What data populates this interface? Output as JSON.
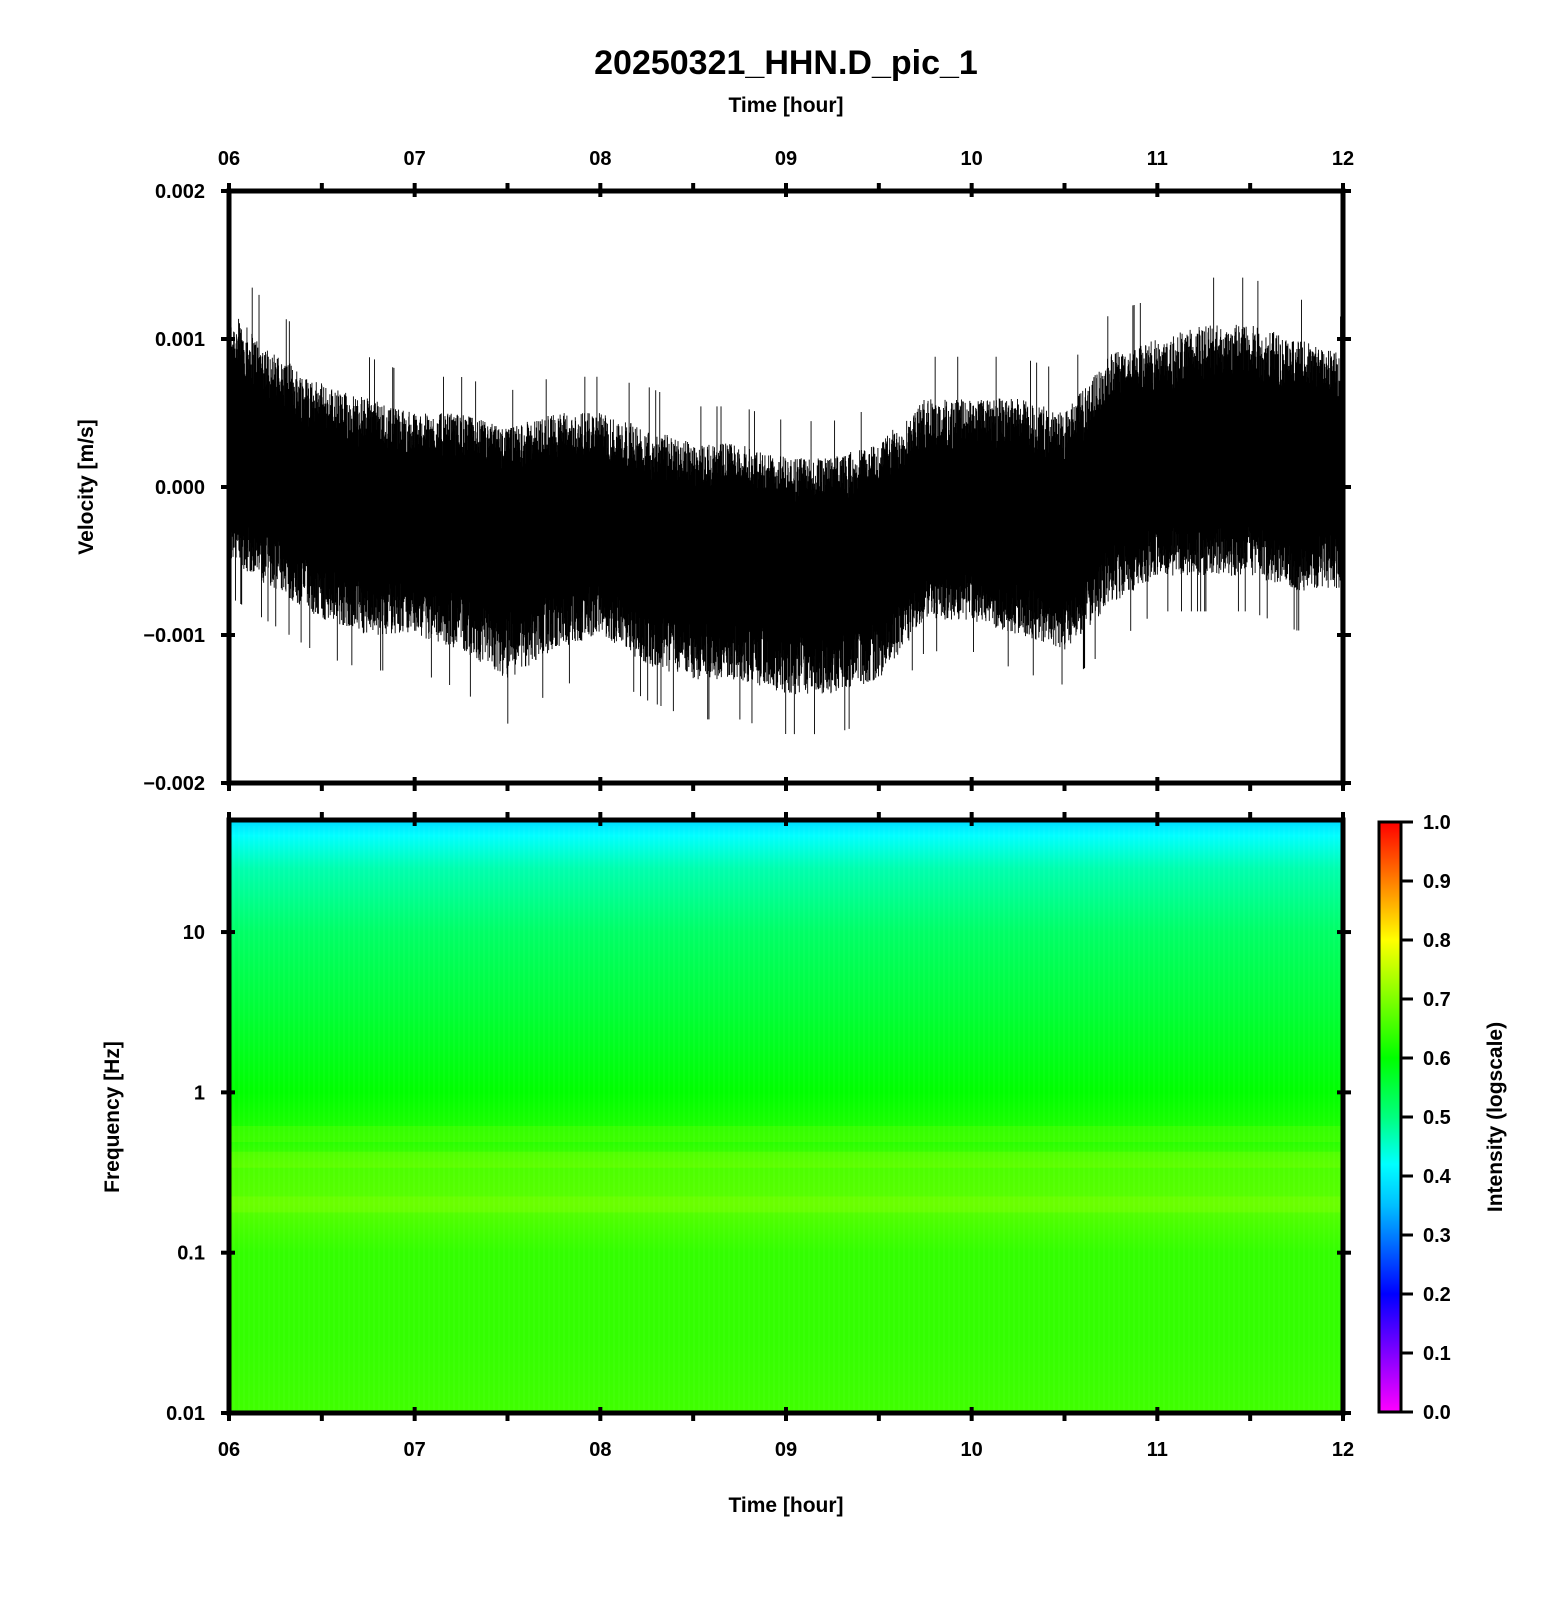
{
  "title": "20250321_HHN.D_pic_1",
  "chart_data": [
    {
      "type": "line",
      "panel": "waveform",
      "xlabel": "Time [hour]",
      "ylabel": "Velocity [m/s]",
      "xlim": [
        6,
        12
      ],
      "ylim": [
        -0.002,
        0.002
      ],
      "x_ticks": [
        "06",
        "07",
        "08",
        "09",
        "10",
        "11",
        "12"
      ],
      "y_ticks": [
        "0.002",
        "0.001",
        "0.000",
        "−0.001",
        "−0.002"
      ],
      "y_tick_values": [
        0.002,
        0.001,
        0.0,
        -0.001,
        -0.002
      ],
      "series": [
        {
          "x": [
            6.0,
            6.25,
            6.5,
            6.75,
            7.0,
            7.25,
            7.5,
            7.75,
            8.0,
            8.25,
            8.5,
            8.75,
            9.0,
            9.25,
            9.5,
            9.75,
            10.0,
            10.25,
            10.5,
            10.75,
            11.0,
            11.25,
            11.5,
            11.75,
            12.0
          ],
          "center": [
            0.0003,
            0.0001,
            -0.0001,
            -0.0002,
            -0.0002,
            -0.0002,
            -0.0003,
            -0.0002,
            -0.0002,
            -0.0004,
            -0.0004,
            -0.0004,
            -0.0005,
            -0.0005,
            -0.0004,
            -0.0002,
            -0.0002,
            -0.0002,
            -0.0003,
            0.0001,
            0.0002,
            0.0002,
            0.0002,
            0.0002,
            0.0002
          ],
          "upper": [
            0.0012,
            0.0009,
            0.0007,
            0.0006,
            0.0005,
            0.0005,
            0.0004,
            0.0005,
            0.0005,
            0.0004,
            0.0003,
            0.0003,
            0.0002,
            0.0002,
            0.0003,
            0.0006,
            0.0006,
            0.0006,
            0.0005,
            0.0009,
            0.001,
            0.0011,
            0.0011,
            0.001,
            0.0009
          ],
          "lower": [
            -0.0005,
            -0.0007,
            -0.0009,
            -0.001,
            -0.001,
            -0.0011,
            -0.0013,
            -0.0011,
            -0.001,
            -0.0012,
            -0.0013,
            -0.0013,
            -0.0014,
            -0.0014,
            -0.0013,
            -0.0009,
            -0.0009,
            -0.001,
            -0.0011,
            -0.0008,
            -0.0006,
            -0.0006,
            -0.0006,
            -0.0007,
            -0.0007
          ]
        }
      ]
    },
    {
      "type": "heatmap",
      "panel": "spectrogram",
      "xlabel": "Time [hour]",
      "ylabel": "Frequency [Hz]",
      "xlim": [
        6,
        12
      ],
      "ylim": [
        0.01,
        50
      ],
      "yscale": "log",
      "x_ticks": [
        "06",
        "07",
        "08",
        "09",
        "10",
        "11",
        "12"
      ],
      "y_ticks": [
        "10",
        "1",
        "0.1",
        "0.01"
      ],
      "y_tick_values": [
        10,
        1,
        0.1,
        0.01
      ],
      "intensity_profile": [
        {
          "freq": 50,
          "value": 0.38
        },
        {
          "freq": 40,
          "value": 0.42
        },
        {
          "freq": 25,
          "value": 0.47
        },
        {
          "freq": 10,
          "value": 0.52
        },
        {
          "freq": 3,
          "value": 0.56
        },
        {
          "freq": 1,
          "value": 0.6
        },
        {
          "freq": 0.5,
          "value": 0.63
        },
        {
          "freq": 0.35,
          "value": 0.66
        },
        {
          "freq": 0.2,
          "value": 0.67
        },
        {
          "freq": 0.1,
          "value": 0.64
        },
        {
          "freq": 0.03,
          "value": 0.64
        },
        {
          "freq": 0.01,
          "value": 0.65
        }
      ],
      "colorbar": {
        "label": "Intensity (logscale)",
        "range": [
          0.0,
          1.0
        ],
        "ticks": [
          "1.0",
          "0.9",
          "0.8",
          "0.7",
          "0.6",
          "0.5",
          "0.4",
          "0.3",
          "0.2",
          "0.1",
          "0.0"
        ],
        "tick_values": [
          1.0,
          0.9,
          0.8,
          0.7,
          0.6,
          0.5,
          0.4,
          0.3,
          0.2,
          0.1,
          0.0
        ],
        "colors": [
          "#ff00ff",
          "#0000ff",
          "#00bfff",
          "#00ffff",
          "#00ff7f",
          "#00ff00",
          "#7fff00",
          "#ffff00",
          "#ff7f00",
          "#ff0000"
        ],
        "color_stops": [
          0.0,
          0.2,
          0.35,
          0.42,
          0.5,
          0.6,
          0.7,
          0.8,
          0.9,
          1.0
        ]
      }
    }
  ]
}
